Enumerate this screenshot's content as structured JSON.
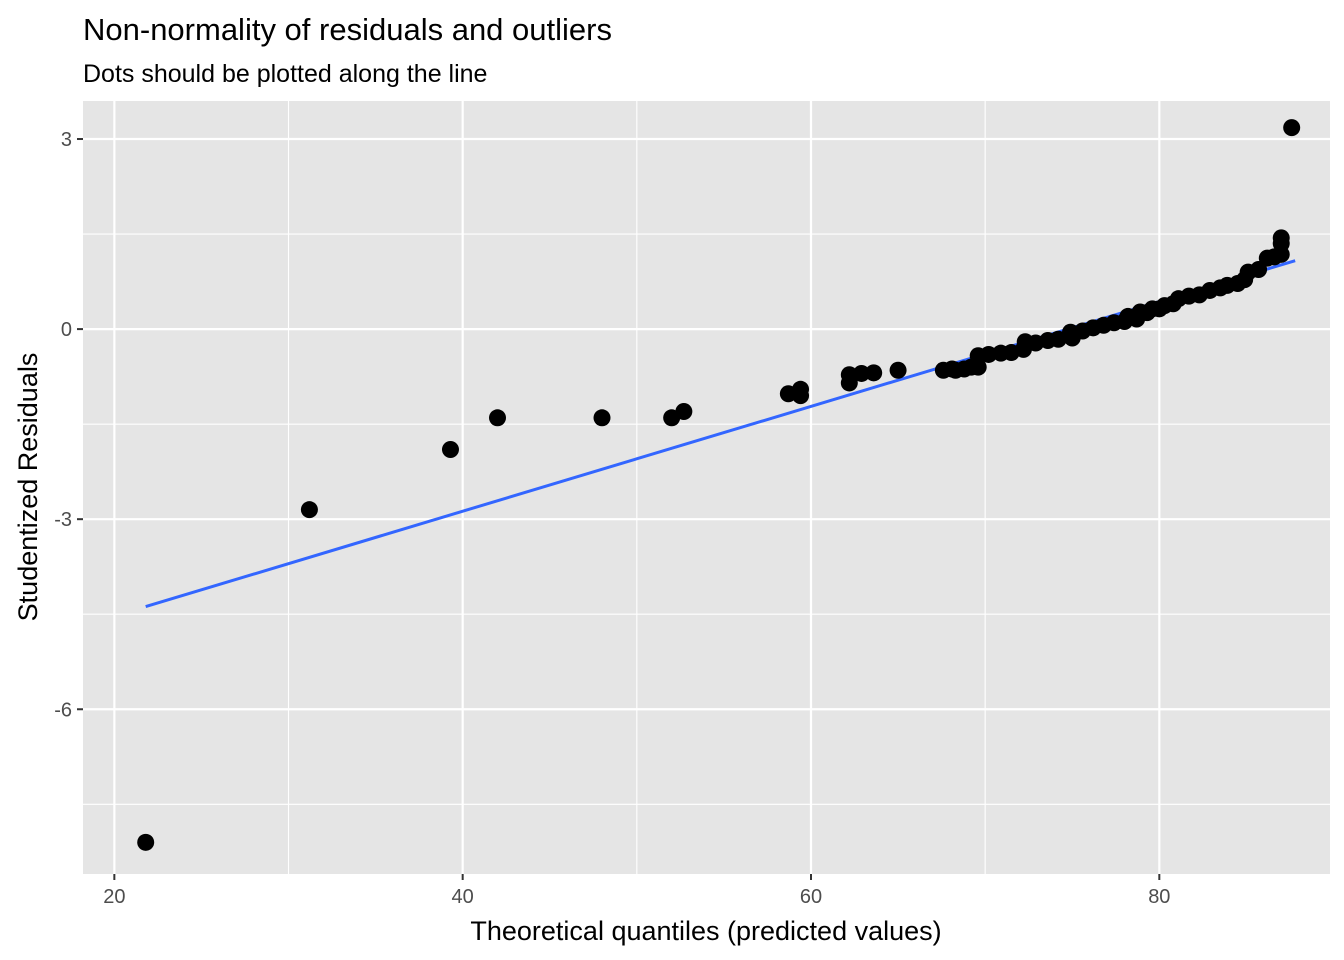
{
  "chart_data": {
    "type": "scatter",
    "title": "Non-normality of residuals and outliers",
    "subtitle": "Dots should be plotted along the line",
    "xlabel": "Theoretical quantiles (predicted values)",
    "ylabel": "Studentized Residuals",
    "xlim": [
      18.2,
      89.8
    ],
    "ylim": [
      -8.6,
      3.6
    ],
    "x_ticks": [
      20,
      40,
      60,
      80
    ],
    "x_tick_labels": [
      "20",
      "40",
      "60",
      "80"
    ],
    "y_ticks": [
      -6,
      -3,
      0,
      3
    ],
    "y_tick_labels": [
      "-6",
      "-3",
      "0",
      "3"
    ],
    "grid": true,
    "colors": {
      "panel_background": "#e5e5e5",
      "grid": "#ffffff",
      "points": "#000000",
      "line": "#3366ff"
    },
    "reference_line": {
      "x": [
        21.8,
        87.8
      ],
      "y": [
        -4.38,
        1.08
      ]
    },
    "points": [
      {
        "x": 21.8,
        "y": -8.1
      },
      {
        "x": 31.2,
        "y": -2.85
      },
      {
        "x": 39.3,
        "y": -1.9
      },
      {
        "x": 42.0,
        "y": -1.4
      },
      {
        "x": 48.0,
        "y": -1.4
      },
      {
        "x": 52.0,
        "y": -1.4
      },
      {
        "x": 52.7,
        "y": -1.3
      },
      {
        "x": 58.7,
        "y": -1.02
      },
      {
        "x": 59.4,
        "y": -1.05
      },
      {
        "x": 59.4,
        "y": -0.95
      },
      {
        "x": 62.2,
        "y": -0.85
      },
      {
        "x": 62.2,
        "y": -0.72
      },
      {
        "x": 62.9,
        "y": -0.7
      },
      {
        "x": 63.6,
        "y": -0.69
      },
      {
        "x": 65.0,
        "y": -0.65
      },
      {
        "x": 67.6,
        "y": -0.65
      },
      {
        "x": 68.1,
        "y": -0.63
      },
      {
        "x": 68.3,
        "y": -0.65
      },
      {
        "x": 68.8,
        "y": -0.63
      },
      {
        "x": 69.2,
        "y": -0.6
      },
      {
        "x": 69.6,
        "y": -0.6
      },
      {
        "x": 69.6,
        "y": -0.42
      },
      {
        "x": 70.2,
        "y": -0.4
      },
      {
        "x": 70.9,
        "y": -0.38
      },
      {
        "x": 71.5,
        "y": -0.37
      },
      {
        "x": 72.2,
        "y": -0.32
      },
      {
        "x": 72.3,
        "y": -0.2
      },
      {
        "x": 72.9,
        "y": -0.22
      },
      {
        "x": 73.6,
        "y": -0.18
      },
      {
        "x": 74.2,
        "y": -0.16
      },
      {
        "x": 74.9,
        "y": -0.05
      },
      {
        "x": 75.0,
        "y": -0.14
      },
      {
        "x": 75.6,
        "y": -0.03
      },
      {
        "x": 76.2,
        "y": 0.02
      },
      {
        "x": 76.8,
        "y": 0.06
      },
      {
        "x": 77.4,
        "y": 0.1
      },
      {
        "x": 78.0,
        "y": 0.12
      },
      {
        "x": 78.2,
        "y": 0.2
      },
      {
        "x": 78.7,
        "y": 0.16
      },
      {
        "x": 78.9,
        "y": 0.27
      },
      {
        "x": 79.3,
        "y": 0.26
      },
      {
        "x": 79.6,
        "y": 0.32
      },
      {
        "x": 80.0,
        "y": 0.32
      },
      {
        "x": 80.3,
        "y": 0.37
      },
      {
        "x": 80.8,
        "y": 0.4
      },
      {
        "x": 81.1,
        "y": 0.48
      },
      {
        "x": 81.7,
        "y": 0.52
      },
      {
        "x": 82.3,
        "y": 0.54
      },
      {
        "x": 82.9,
        "y": 0.61
      },
      {
        "x": 83.5,
        "y": 0.65
      },
      {
        "x": 83.9,
        "y": 0.69
      },
      {
        "x": 84.5,
        "y": 0.72
      },
      {
        "x": 84.9,
        "y": 0.78
      },
      {
        "x": 85.1,
        "y": 0.9
      },
      {
        "x": 85.7,
        "y": 0.94
      },
      {
        "x": 86.2,
        "y": 1.12
      },
      {
        "x": 86.6,
        "y": 1.14
      },
      {
        "x": 87.0,
        "y": 1.18
      },
      {
        "x": 87.0,
        "y": 1.35
      },
      {
        "x": 87.0,
        "y": 1.44
      },
      {
        "x": 87.6,
        "y": 3.18
      }
    ]
  }
}
